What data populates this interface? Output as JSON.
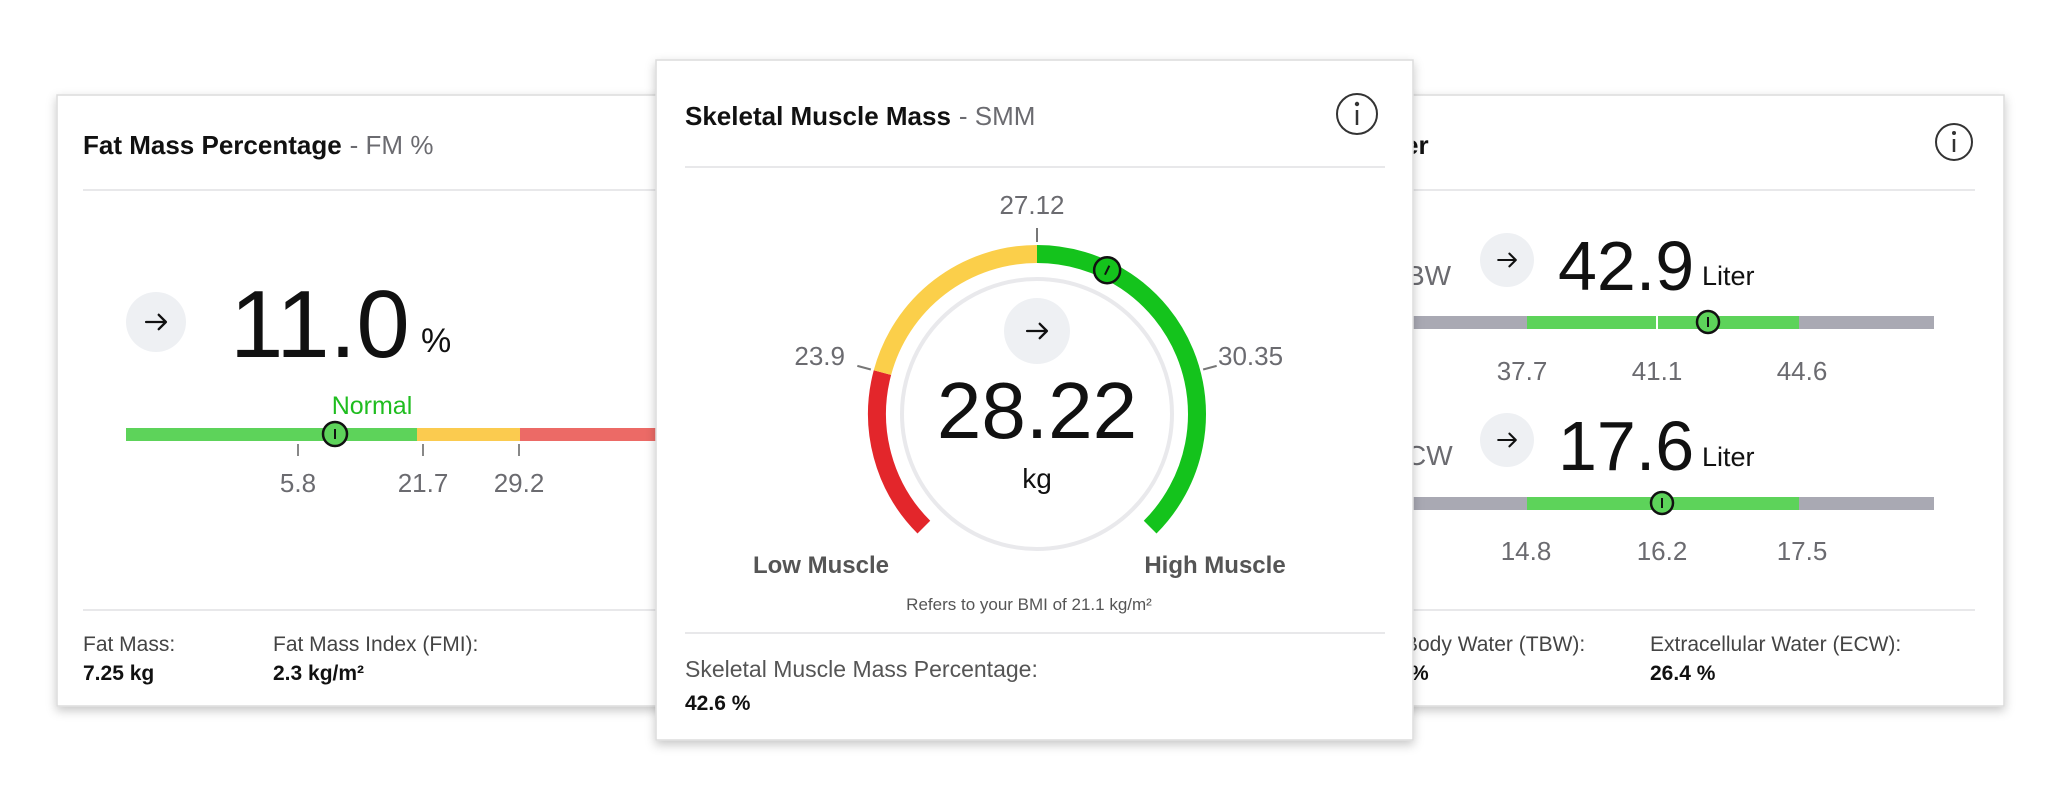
{
  "fat_mass_card": {
    "title": "Fat Mass Percentage",
    "abbr": "- FM %",
    "value": "11.0",
    "unit": "%",
    "status": "Normal",
    "range_labels": [
      "5.8",
      "21.7",
      "29.2"
    ],
    "stats": [
      {
        "label": "Fat Mass:",
        "value": "7.25 kg"
      },
      {
        "label": "Fat Mass Index (FMI):",
        "value": "2.3 kg/m²"
      }
    ]
  },
  "muscle_card": {
    "title": "Skeletal Muscle Mass",
    "abbr": "- SMM",
    "value": "28.22",
    "unit": "kg",
    "range_labels": [
      "23.9",
      "27.12",
      "30.35"
    ],
    "low_label": "Low Muscle",
    "high_label": "High Muscle",
    "note": "Refers to your BMI of 21.1 kg/m²",
    "stats": [
      {
        "label": "Skeletal Muscle Mass Percentage:",
        "value": "42.6 %"
      }
    ]
  },
  "water_card": {
    "title": "er",
    "metrics": [
      {
        "label": "BW",
        "value": "42.9",
        "unit": "Liter",
        "range_labels": [
          "37.7",
          "41.1",
          "44.6"
        ]
      },
      {
        "label": "CW",
        "value": "17.6",
        "unit": "Liter",
        "range_labels": [
          "14.8",
          "16.2",
          "17.5"
        ]
      }
    ],
    "stats": [
      {
        "label": "Body Water (TBW):",
        "value": "%"
      },
      {
        "label": "Extracellular Water (ECW):",
        "value": "26.4 %"
      }
    ]
  }
}
